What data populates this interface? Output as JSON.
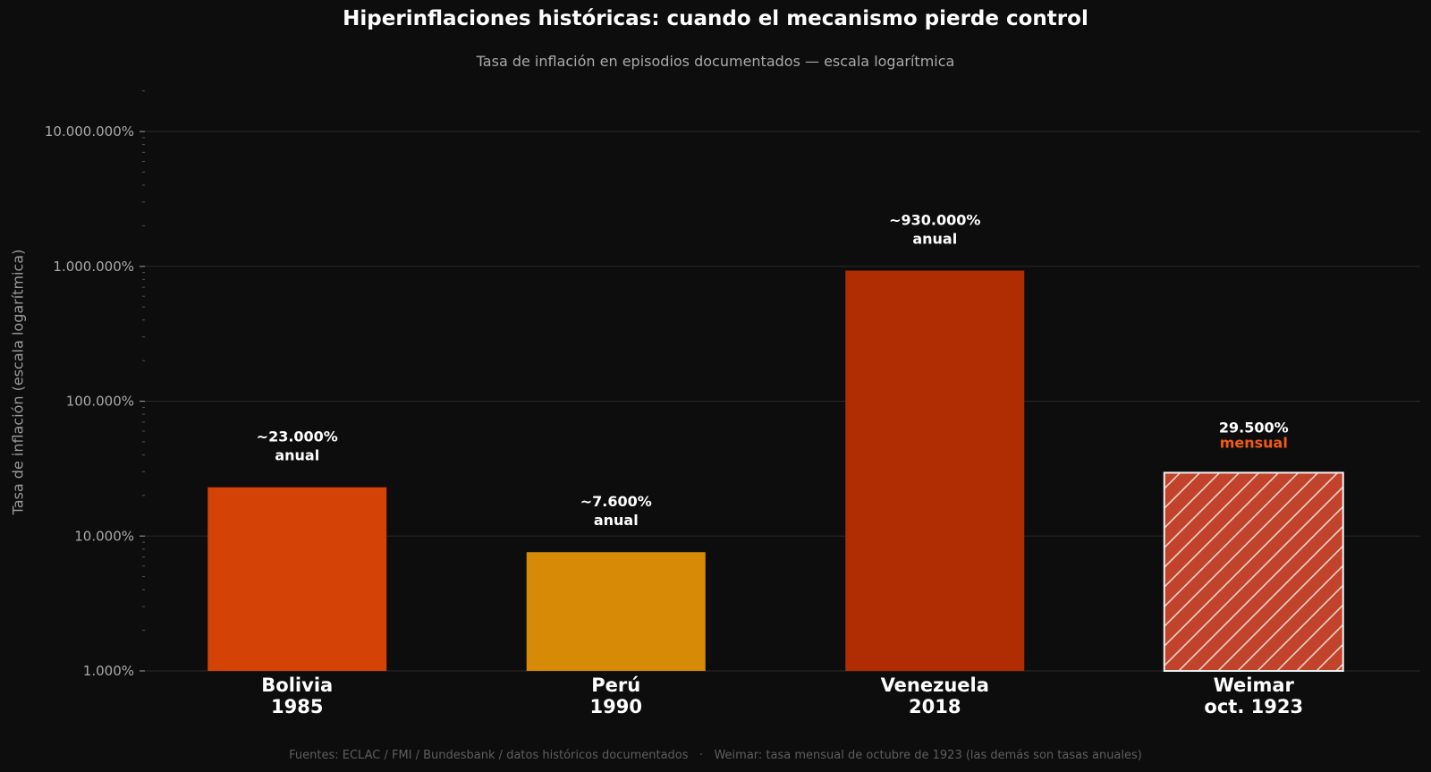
{
  "chart_data": {
    "type": "bar",
    "title": "Hiperinflaciones históricas: cuando el mecanismo pierde control",
    "subtitle": "Tasa de inflación en episodios documentados — escala logarítmica",
    "ylabel": "Tasa de inflación (escala logarítmica)",
    "yscale": "log",
    "ylim": [
      1000,
      10000000
    ],
    "yticks": [
      {
        "value": 1000,
        "label": "1.000%"
      },
      {
        "value": 10000,
        "label": "10.000%"
      },
      {
        "value": 100000,
        "label": "100.000%"
      },
      {
        "value": 1000000,
        "label": "1.000.000%"
      },
      {
        "value": 10000000,
        "label": "10.000.000%"
      }
    ],
    "grid": true,
    "categories": [
      {
        "line1": "Bolivia",
        "line2": "1985"
      },
      {
        "line1": "Perú",
        "line2": "1990"
      },
      {
        "line1": "Venezuela",
        "line2": "2018"
      },
      {
        "line1": "Weimar",
        "line2": "oct. 1923"
      }
    ],
    "values": [
      23000,
      7600,
      930000,
      29500
    ],
    "value_labels": [
      "~23.000%",
      "~7.600%",
      "~930.000%",
      "29.500%"
    ],
    "period_labels": [
      "anual",
      "anual",
      "anual",
      "mensual"
    ],
    "colors": [
      "#d44206",
      "#d68a06",
      "#b02c02",
      "#c2432c"
    ],
    "hatched": [
      false,
      false,
      false,
      true
    ],
    "highlight_period_color": "#f05a14"
  },
  "footer": "Fuentes: ECLAC / FMI / Bundesbank / datos históricos documentados   ·   Weimar: tasa mensual de octubre de 1923 (las demás son tasas anuales)"
}
